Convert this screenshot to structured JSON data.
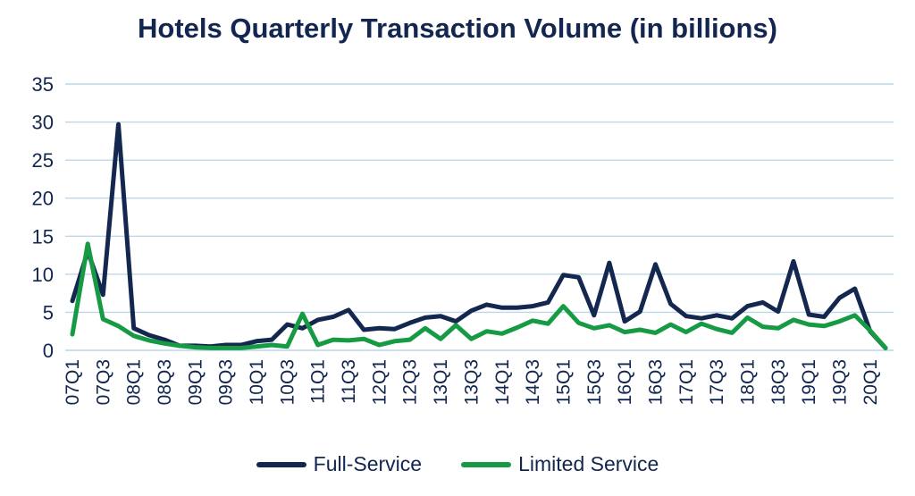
{
  "chart_data": {
    "type": "line",
    "title": "Hotels Quarterly Transaction Volume (in billions)",
    "xlabel": "",
    "ylabel": "",
    "ylim": [
      0,
      35
    ],
    "yticks": [
      0,
      5,
      10,
      15,
      20,
      25,
      30,
      35
    ],
    "grid": true,
    "legend_position": "bottom",
    "x": [
      "07Q1",
      "07Q2",
      "07Q3",
      "07Q4",
      "08Q1",
      "08Q2",
      "08Q3",
      "08Q4",
      "09Q1",
      "09Q2",
      "09Q3",
      "09Q4",
      "10Q1",
      "10Q2",
      "10Q3",
      "10Q4",
      "11Q1",
      "11Q2",
      "11Q3",
      "11Q4",
      "12Q1",
      "12Q2",
      "12Q3",
      "12Q4",
      "13Q1",
      "13Q2",
      "13Q3",
      "13Q4",
      "14Q1",
      "14Q2",
      "14Q3",
      "14Q4",
      "15Q1",
      "15Q2",
      "15Q3",
      "15Q4",
      "16Q1",
      "16Q2",
      "16Q3",
      "16Q4",
      "17Q1",
      "17Q2",
      "17Q3",
      "17Q4",
      "18Q1",
      "18Q2",
      "18Q3",
      "18Q4",
      "19Q1",
      "19Q2",
      "19Q3",
      "19Q4",
      "20Q1",
      "20Q2"
    ],
    "x_tick_labels": [
      "07Q1",
      "07Q3",
      "08Q1",
      "08Q3",
      "09Q1",
      "09Q3",
      "10Q1",
      "10Q3",
      "11Q1",
      "11Q3",
      "12Q1",
      "12Q3",
      "13Q1",
      "13Q3",
      "14Q1",
      "14Q3",
      "15Q1",
      "15Q3",
      "16Q1",
      "16Q3",
      "17Q1",
      "17Q3",
      "18Q1",
      "18Q3",
      "19Q1",
      "19Q3",
      "20Q1"
    ],
    "series": [
      {
        "name": "Full-Service",
        "color": "#13274f",
        "values": [
          6.5,
          13.0,
          7.3,
          29.7,
          2.9,
          2.0,
          1.4,
          0.6,
          0.6,
          0.5,
          0.7,
          0.7,
          1.2,
          1.4,
          3.4,
          2.9,
          4.0,
          4.4,
          5.3,
          2.7,
          2.9,
          2.8,
          3.6,
          4.3,
          4.5,
          3.8,
          5.2,
          6.0,
          5.6,
          5.6,
          5.8,
          6.3,
          9.9,
          9.6,
          4.6,
          11.5,
          3.8,
          5.1,
          11.3,
          6.1,
          4.5,
          4.2,
          4.6,
          4.2,
          5.8,
          6.3,
          5.1,
          11.7,
          4.7,
          4.4,
          6.9,
          8.1,
          2.5,
          0.3
        ]
      },
      {
        "name": "Limited Service",
        "color": "#179a44",
        "values": [
          2.1,
          14.0,
          4.1,
          3.2,
          1.9,
          1.3,
          0.9,
          0.6,
          0.4,
          0.3,
          0.3,
          0.3,
          0.5,
          0.7,
          0.5,
          4.8,
          0.7,
          1.4,
          1.3,
          1.5,
          0.7,
          1.2,
          1.4,
          2.9,
          1.5,
          3.3,
          1.5,
          2.5,
          2.2,
          3.0,
          3.9,
          3.5,
          5.8,
          3.6,
          2.9,
          3.3,
          2.4,
          2.7,
          2.3,
          3.4,
          2.4,
          3.5,
          2.8,
          2.3,
          4.3,
          3.1,
          2.9,
          4.0,
          3.4,
          3.2,
          3.8,
          4.6,
          2.6,
          0.3
        ]
      }
    ]
  }
}
